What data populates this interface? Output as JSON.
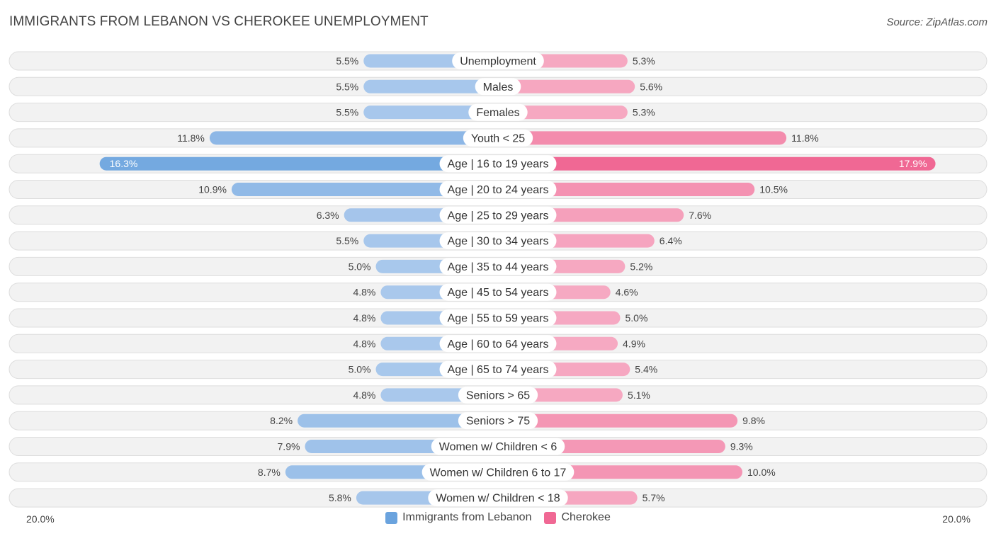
{
  "title": "IMMIGRANTS FROM LEBANON VS CHEROKEE UNEMPLOYMENT",
  "source": "Source: ZipAtlas.com",
  "colors": {
    "left_light": "#a9c8ec",
    "left_strong": "#6aa3de",
    "right_light": "#f6a9c2",
    "right_strong": "#f06894",
    "row_bg": "#f2f2f2",
    "row_border": "#dddddd"
  },
  "legend": {
    "left_label": "Immigrants from Lebanon",
    "right_label": "Cherokee"
  },
  "axis": {
    "left_label": "20.0%",
    "right_label": "20.0%"
  },
  "chart_data": {
    "type": "bar",
    "orientation": "horizontal-diverging",
    "title": "IMMIGRANTS FROM LEBANON VS CHEROKEE UNEMPLOYMENT",
    "xlim": [
      0,
      20
    ],
    "categories": [
      "Unemployment",
      "Males",
      "Females",
      "Youth < 25",
      "Age | 16 to 19 years",
      "Age | 20 to 24 years",
      "Age | 25 to 29 years",
      "Age | 30 to 34 years",
      "Age | 35 to 44 years",
      "Age | 45 to 54 years",
      "Age | 55 to 59 years",
      "Age | 60 to 64 years",
      "Age | 65 to 74 years",
      "Seniors > 65",
      "Seniors > 75",
      "Women w/ Children < 6",
      "Women w/ Children 6 to 17",
      "Women w/ Children < 18"
    ],
    "series": [
      {
        "name": "Immigrants from Lebanon",
        "values": [
          5.5,
          5.5,
          5.5,
          11.8,
          16.3,
          10.9,
          6.3,
          5.5,
          5.0,
          4.8,
          4.8,
          4.8,
          5.0,
          4.8,
          8.2,
          7.9,
          8.7,
          5.8
        ],
        "labels": [
          "5.5%",
          "5.5%",
          "5.5%",
          "11.8%",
          "16.3%",
          "10.9%",
          "6.3%",
          "5.5%",
          "5.0%",
          "4.8%",
          "4.8%",
          "4.8%",
          "5.0%",
          "4.8%",
          "8.2%",
          "7.9%",
          "8.7%",
          "5.8%"
        ]
      },
      {
        "name": "Cherokee",
        "values": [
          5.3,
          5.6,
          5.3,
          11.8,
          17.9,
          10.5,
          7.6,
          6.4,
          5.2,
          4.6,
          5.0,
          4.9,
          5.4,
          5.1,
          9.8,
          9.3,
          10.0,
          5.7
        ],
        "labels": [
          "5.3%",
          "5.6%",
          "5.3%",
          "11.8%",
          "17.9%",
          "10.5%",
          "7.6%",
          "6.4%",
          "5.2%",
          "4.6%",
          "5.0%",
          "4.9%",
          "5.4%",
          "5.1%",
          "9.8%",
          "9.3%",
          "10.0%",
          "5.7%"
        ]
      }
    ]
  }
}
